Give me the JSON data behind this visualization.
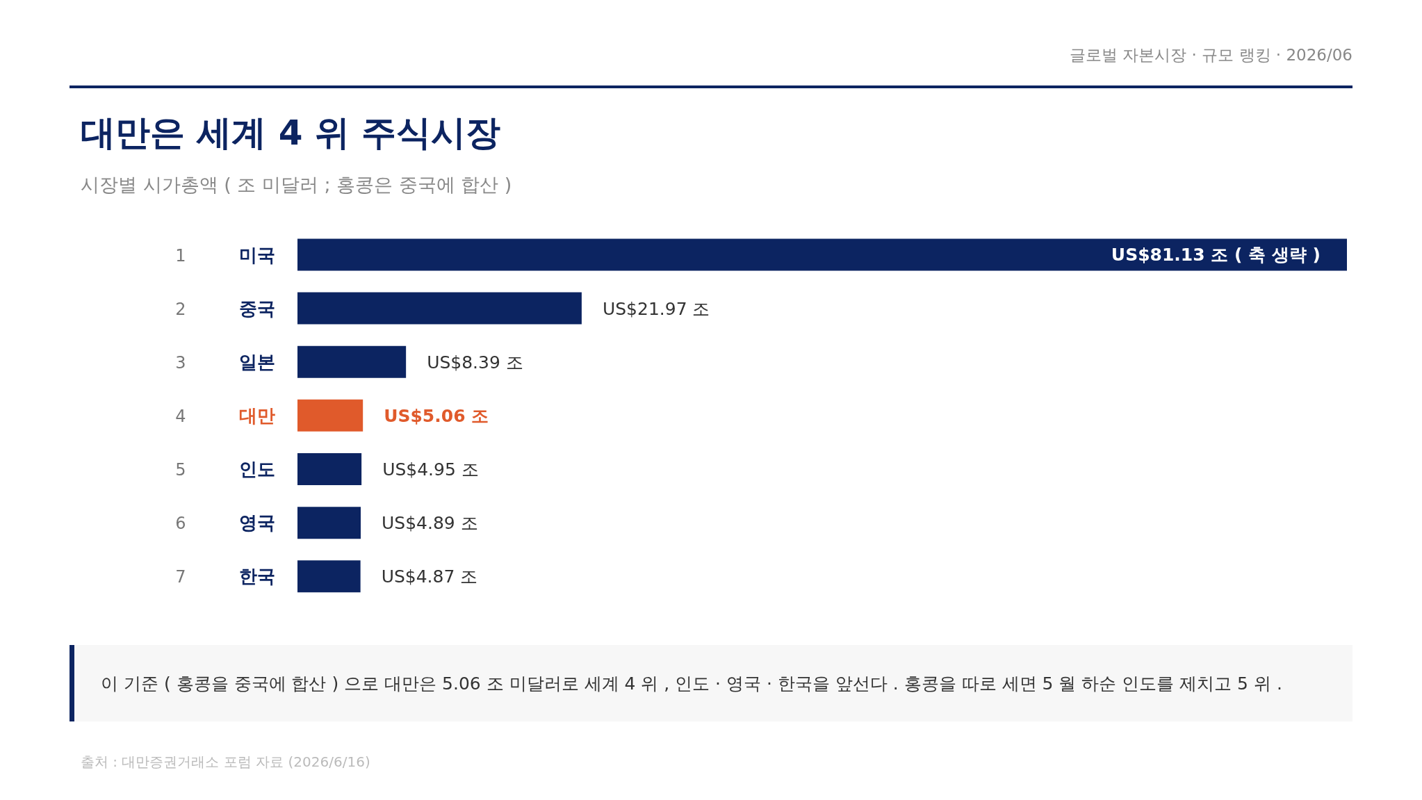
{
  "chart_data": {
    "type": "bar",
    "orientation": "horizontal",
    "title": "대만은 세계  4 위 주식시장",
    "subtitle": "시장별 시가총액 ( 조 미달러 ;  홍콩은 중국에 합산 )",
    "categories": [
      "1 미국",
      "2 중국",
      "3 일본",
      "4 대만",
      "5 인도",
      "6 영국",
      "7 한국"
    ],
    "values": [
      81.13,
      21.97,
      8.39,
      5.06,
      4.95,
      4.89,
      4.87
    ],
    "value_labels": [
      "US$81.13 조 ( 축 생략 )",
      "US$21.97 조",
      "US$8.39 조",
      "US$5.06 조",
      "US$4.95 조",
      "US$4.89 조",
      "US$4.87 조"
    ],
    "color": "#0c2461",
    "colors": [
      "#0c2461",
      "#0c2461",
      "#0c2461",
      "#e05a2b",
      "#0c2461",
      "#0c2461",
      "#0c2461"
    ],
    "grid": false,
    "legend": false,
    "annotations": [
      "글로벌 자본시장  ·  규모 랭킹  · 2026/06",
      "이 기준 ( 홍콩을 중국에 합산 ) 으로 대만은  5.06 조 미달러로 세계  4 위 ,  인도 · 영국 · 한국을 앞선다 .  홍콩을 따로 세면  5 월 하순 인도를 제치고  5 위 .",
      "출처 :  대만증권거래소 포럼 자료 (2026/6/16)"
    ]
  }
}
